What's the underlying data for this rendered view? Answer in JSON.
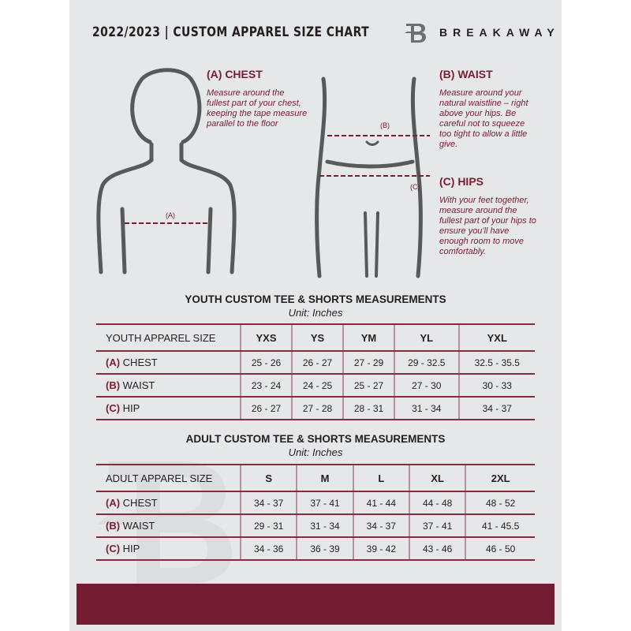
{
  "header": {
    "title": "2022/2023  |  CUSTOM APPAREL SIZE CHART",
    "brand": "BREAKAWAY"
  },
  "colors": {
    "accent": "#7a1c32",
    "background": "#e6e7e8"
  },
  "guide": {
    "chest": {
      "title": "(A) CHEST",
      "marker": "(A)",
      "text": "Measure around the fullest part of your chest, keeping the tape measure parallel to the floor"
    },
    "waist": {
      "title": "(B) WAIST",
      "marker": "(B)",
      "text": "Measure around your natural waistline – right above your hips. Be careful not to squeeze too tight to allow a little give."
    },
    "hips": {
      "title": "(C) HIPS",
      "marker": "(C)",
      "text": "With your feet together, measure around the fullest part of your hips to ensure you'll have enough room to move comfortably."
    }
  },
  "youth": {
    "title": "YOUTH CUSTOM TEE & SHORTS MEASUREMENTS",
    "unit": "Unit: Inches",
    "header": "YOUTH APPAREL SIZE",
    "sizes": [
      "YXS",
      "YS",
      "YM",
      "YL",
      "YXL"
    ],
    "rows": [
      {
        "letter": "(A)",
        "label": "CHEST",
        "values": [
          "25 - 26",
          "26 - 27",
          "27 - 29",
          "29 - 32.5",
          "32.5 - 35.5"
        ]
      },
      {
        "letter": "(B)",
        "label": "WAIST",
        "values": [
          "23 - 24",
          "24 - 25",
          "25 - 27",
          "27 - 30",
          "30 - 33"
        ]
      },
      {
        "letter": "(C)",
        "label": "HIP",
        "values": [
          "26 - 27",
          "27 - 28",
          "28 - 31",
          "31 - 34",
          "34 - 37"
        ]
      }
    ]
  },
  "adult": {
    "title": "ADULT CUSTOM TEE & SHORTS MEASUREMENTS",
    "unit": "Unit: Inches",
    "header": "ADULT APPAREL SIZE",
    "sizes": [
      "S",
      "M",
      "L",
      "XL",
      "2XL"
    ],
    "rows": [
      {
        "letter": "(A)",
        "label": "CHEST",
        "values": [
          "34 - 37",
          "37 - 41",
          "41 - 44",
          "44 - 48",
          "48 - 52"
        ]
      },
      {
        "letter": "(B)",
        "label": "WAIST",
        "values": [
          "29 - 31",
          "31 - 34",
          "34 - 37",
          "37 - 41",
          "41 - 45.5"
        ]
      },
      {
        "letter": "(C)",
        "label": "HIP",
        "values": [
          "34 - 36",
          "36 - 39",
          "39 - 42",
          "43 - 46",
          "46 - 50"
        ]
      }
    ]
  }
}
